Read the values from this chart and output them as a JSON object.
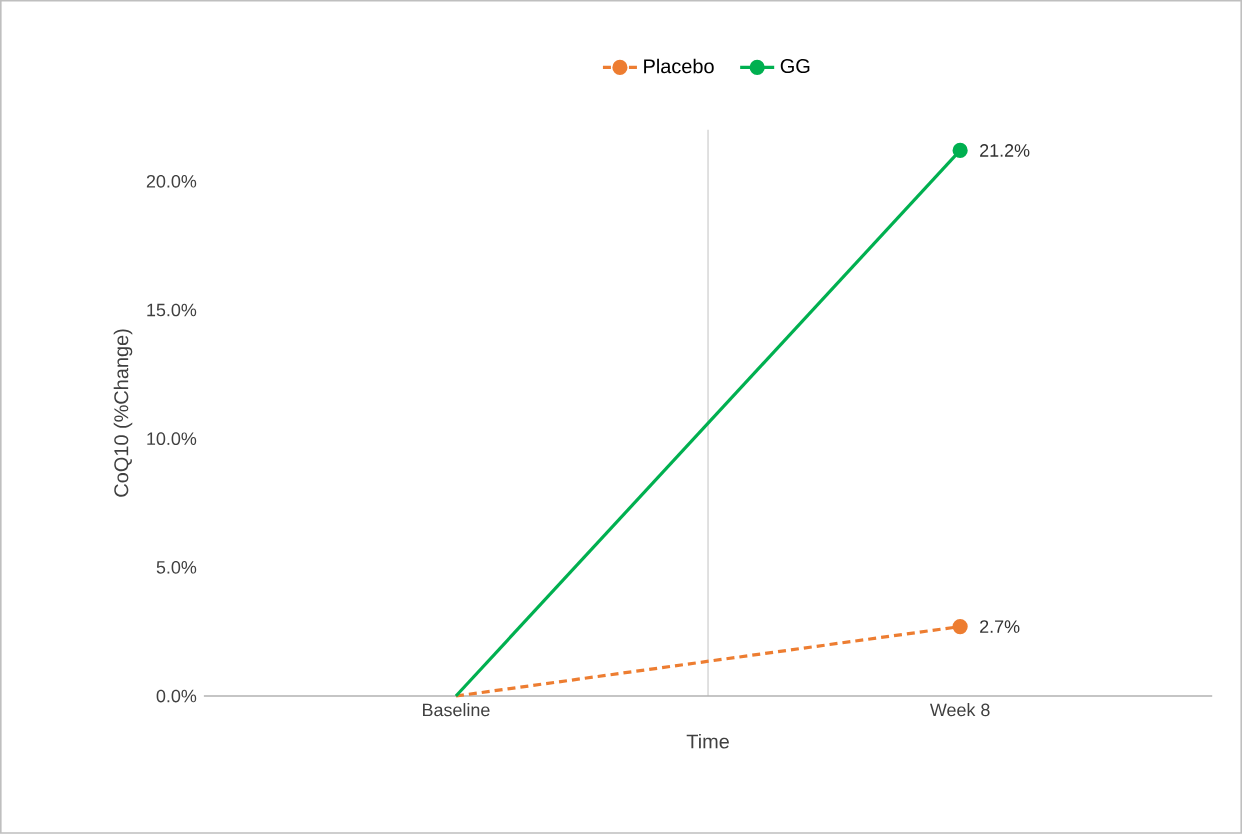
{
  "chart_data": {
    "type": "line",
    "xlabel": "Time",
    "ylabel": "CoQ10 (%Change)",
    "categories": [
      "Baseline",
      "Week 8"
    ],
    "series": [
      {
        "name": "Placebo",
        "color": "#ed7d31",
        "values": [
          0,
          2.7
        ],
        "line_style": "dashed",
        "value_labels": [
          null,
          "2.7%"
        ]
      },
      {
        "name": "GG",
        "color": "#00b050",
        "values": [
          0,
          21.2
        ],
        "line_style": "solid",
        "value_labels": [
          null,
          "21.2%"
        ]
      }
    ],
    "ylim": [
      0,
      22
    ],
    "yticks": [
      {
        "value": 0,
        "label": "0.0%"
      },
      {
        "value": 5,
        "label": "5.0%"
      },
      {
        "value": 10,
        "label": "10.0%"
      },
      {
        "value": 15,
        "label": "15.0%"
      },
      {
        "value": 20,
        "label": "20.0%"
      }
    ],
    "grid": "x",
    "legend": "top",
    "marker": "circle"
  }
}
